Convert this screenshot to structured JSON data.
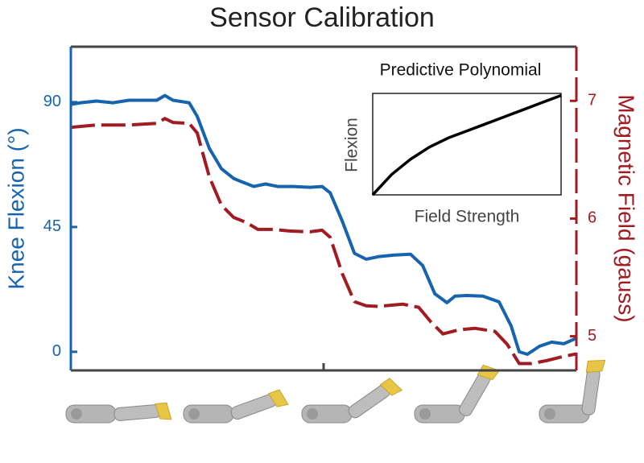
{
  "chart_data": [
    {
      "type": "line",
      "title": "Sensor Calibration",
      "ylabel": "Knee Flexion (°)",
      "y2label": "Magnetic Field (gauss)",
      "xlim": [
        0,
        100
      ],
      "ylim": [
        -6.7,
        110
      ],
      "yticks": [
        0,
        45,
        90
      ],
      "y2lim": [
        4.71,
        7.46
      ],
      "y2ticks": [
        5,
        6,
        7
      ],
      "series": [
        {
          "color": "#1764ae",
          "x": [
            0,
            1.9,
            5.1,
            8.3,
            11.5,
            14.6,
            17.0,
            18.6,
            20.2,
            23.4,
            25.0,
            27.4,
            29.8,
            32.2,
            33.8,
            36.2,
            38.5,
            40.9,
            44.1,
            47.3,
            49.7,
            51.3,
            53.7,
            56.1,
            58.4,
            60.8,
            64.0,
            67.2,
            69.6,
            72.0,
            74.4,
            76.0,
            78.3,
            81.5,
            84.7,
            87.1,
            88.7,
            90.3,
            92.7,
            95.1,
            97.5,
            100
          ],
          "values": [
            89.2,
            89.8,
            90.4,
            89.8,
            90.7,
            90.7,
            90.7,
            92.4,
            90.7,
            89.8,
            84.9,
            73.3,
            66.0,
            62.5,
            61.3,
            59.6,
            60.5,
            59.6,
            59.6,
            59.3,
            59.6,
            57.3,
            47.1,
            35.5,
            33.4,
            34.3,
            34.9,
            35.2,
            31.1,
            20.9,
            17.7,
            20.1,
            20.3,
            20.1,
            18.0,
            9.3,
            0,
            -0.9,
            2.0,
            3.5,
            2.9,
            4.9
          ]
        },
        {
          "color": "#a01c22",
          "axis": "y2",
          "dash": true,
          "x": [
            0,
            5.1,
            11.5,
            17.0,
            18.6,
            20.2,
            23.4,
            25.0,
            27.4,
            29.8,
            32.2,
            34.6,
            37.0,
            40.1,
            43.3,
            47.3,
            49.7,
            51.3,
            53.7,
            56.1,
            58.4,
            60.8,
            65.6,
            68.8,
            71.2,
            73.6,
            76.8,
            79.9,
            83.9,
            86.3,
            88.7,
            91.1,
            94.3,
            97.5,
            100
          ],
          "values": [
            6.775,
            6.795,
            6.795,
            6.809,
            6.85,
            6.816,
            6.809,
            6.727,
            6.352,
            6.113,
            6.01,
            5.969,
            5.908,
            5.908,
            5.894,
            5.887,
            5.901,
            5.84,
            5.532,
            5.294,
            5.259,
            5.253,
            5.273,
            5.246,
            5.123,
            5.02,
            5.055,
            5.068,
            5.041,
            4.932,
            4.768,
            4.768,
            4.795,
            4.829,
            4.85
          ]
        }
      ]
    },
    {
      "type": "line",
      "title": "Predictive Polynomial",
      "xlabel": "Field Strength",
      "ylabel": "Flexion",
      "xlim": [
        0,
        1
      ],
      "ylim": [
        0,
        1
      ],
      "series": [
        {
          "color": "#000000",
          "x": [
            0,
            0.1,
            0.2,
            0.3,
            0.4,
            0.5,
            0.6,
            0.7,
            0.8,
            0.9,
            1
          ],
          "values": [
            0,
            0.2,
            0.35,
            0.47,
            0.56,
            0.63,
            0.7,
            0.77,
            0.84,
            0.91,
            0.98
          ]
        }
      ]
    }
  ]
}
